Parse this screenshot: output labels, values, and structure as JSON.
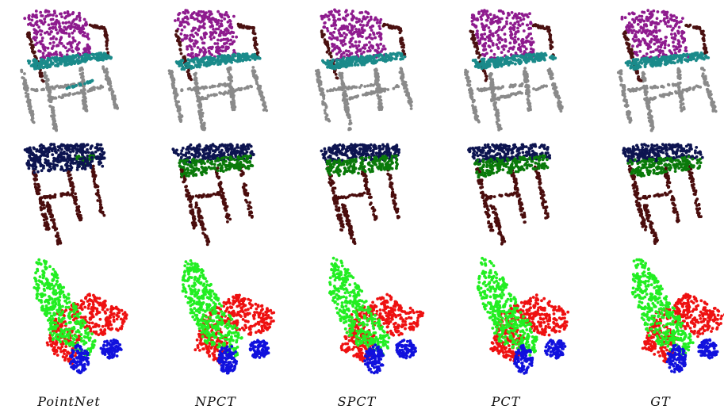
{
  "figure": {
    "columns": [
      "PointNet",
      "NPCT",
      "SPCT",
      "PCT",
      "GT"
    ],
    "rows": [
      "chair",
      "table",
      "airplane"
    ],
    "part_colors": {
      "chair": {
        "back": "#8e1b8e",
        "seat": "#1a8a8a",
        "arm": "#4a1010",
        "leg": "#8a8a8a"
      },
      "table": {
        "top": "#0d1450",
        "drawer": "#0a7a0a",
        "leg": "#4a0d0d"
      },
      "airplane": {
        "body": "#22ee22",
        "wing": "#ee1111",
        "tail": "#1111dd"
      }
    }
  }
}
